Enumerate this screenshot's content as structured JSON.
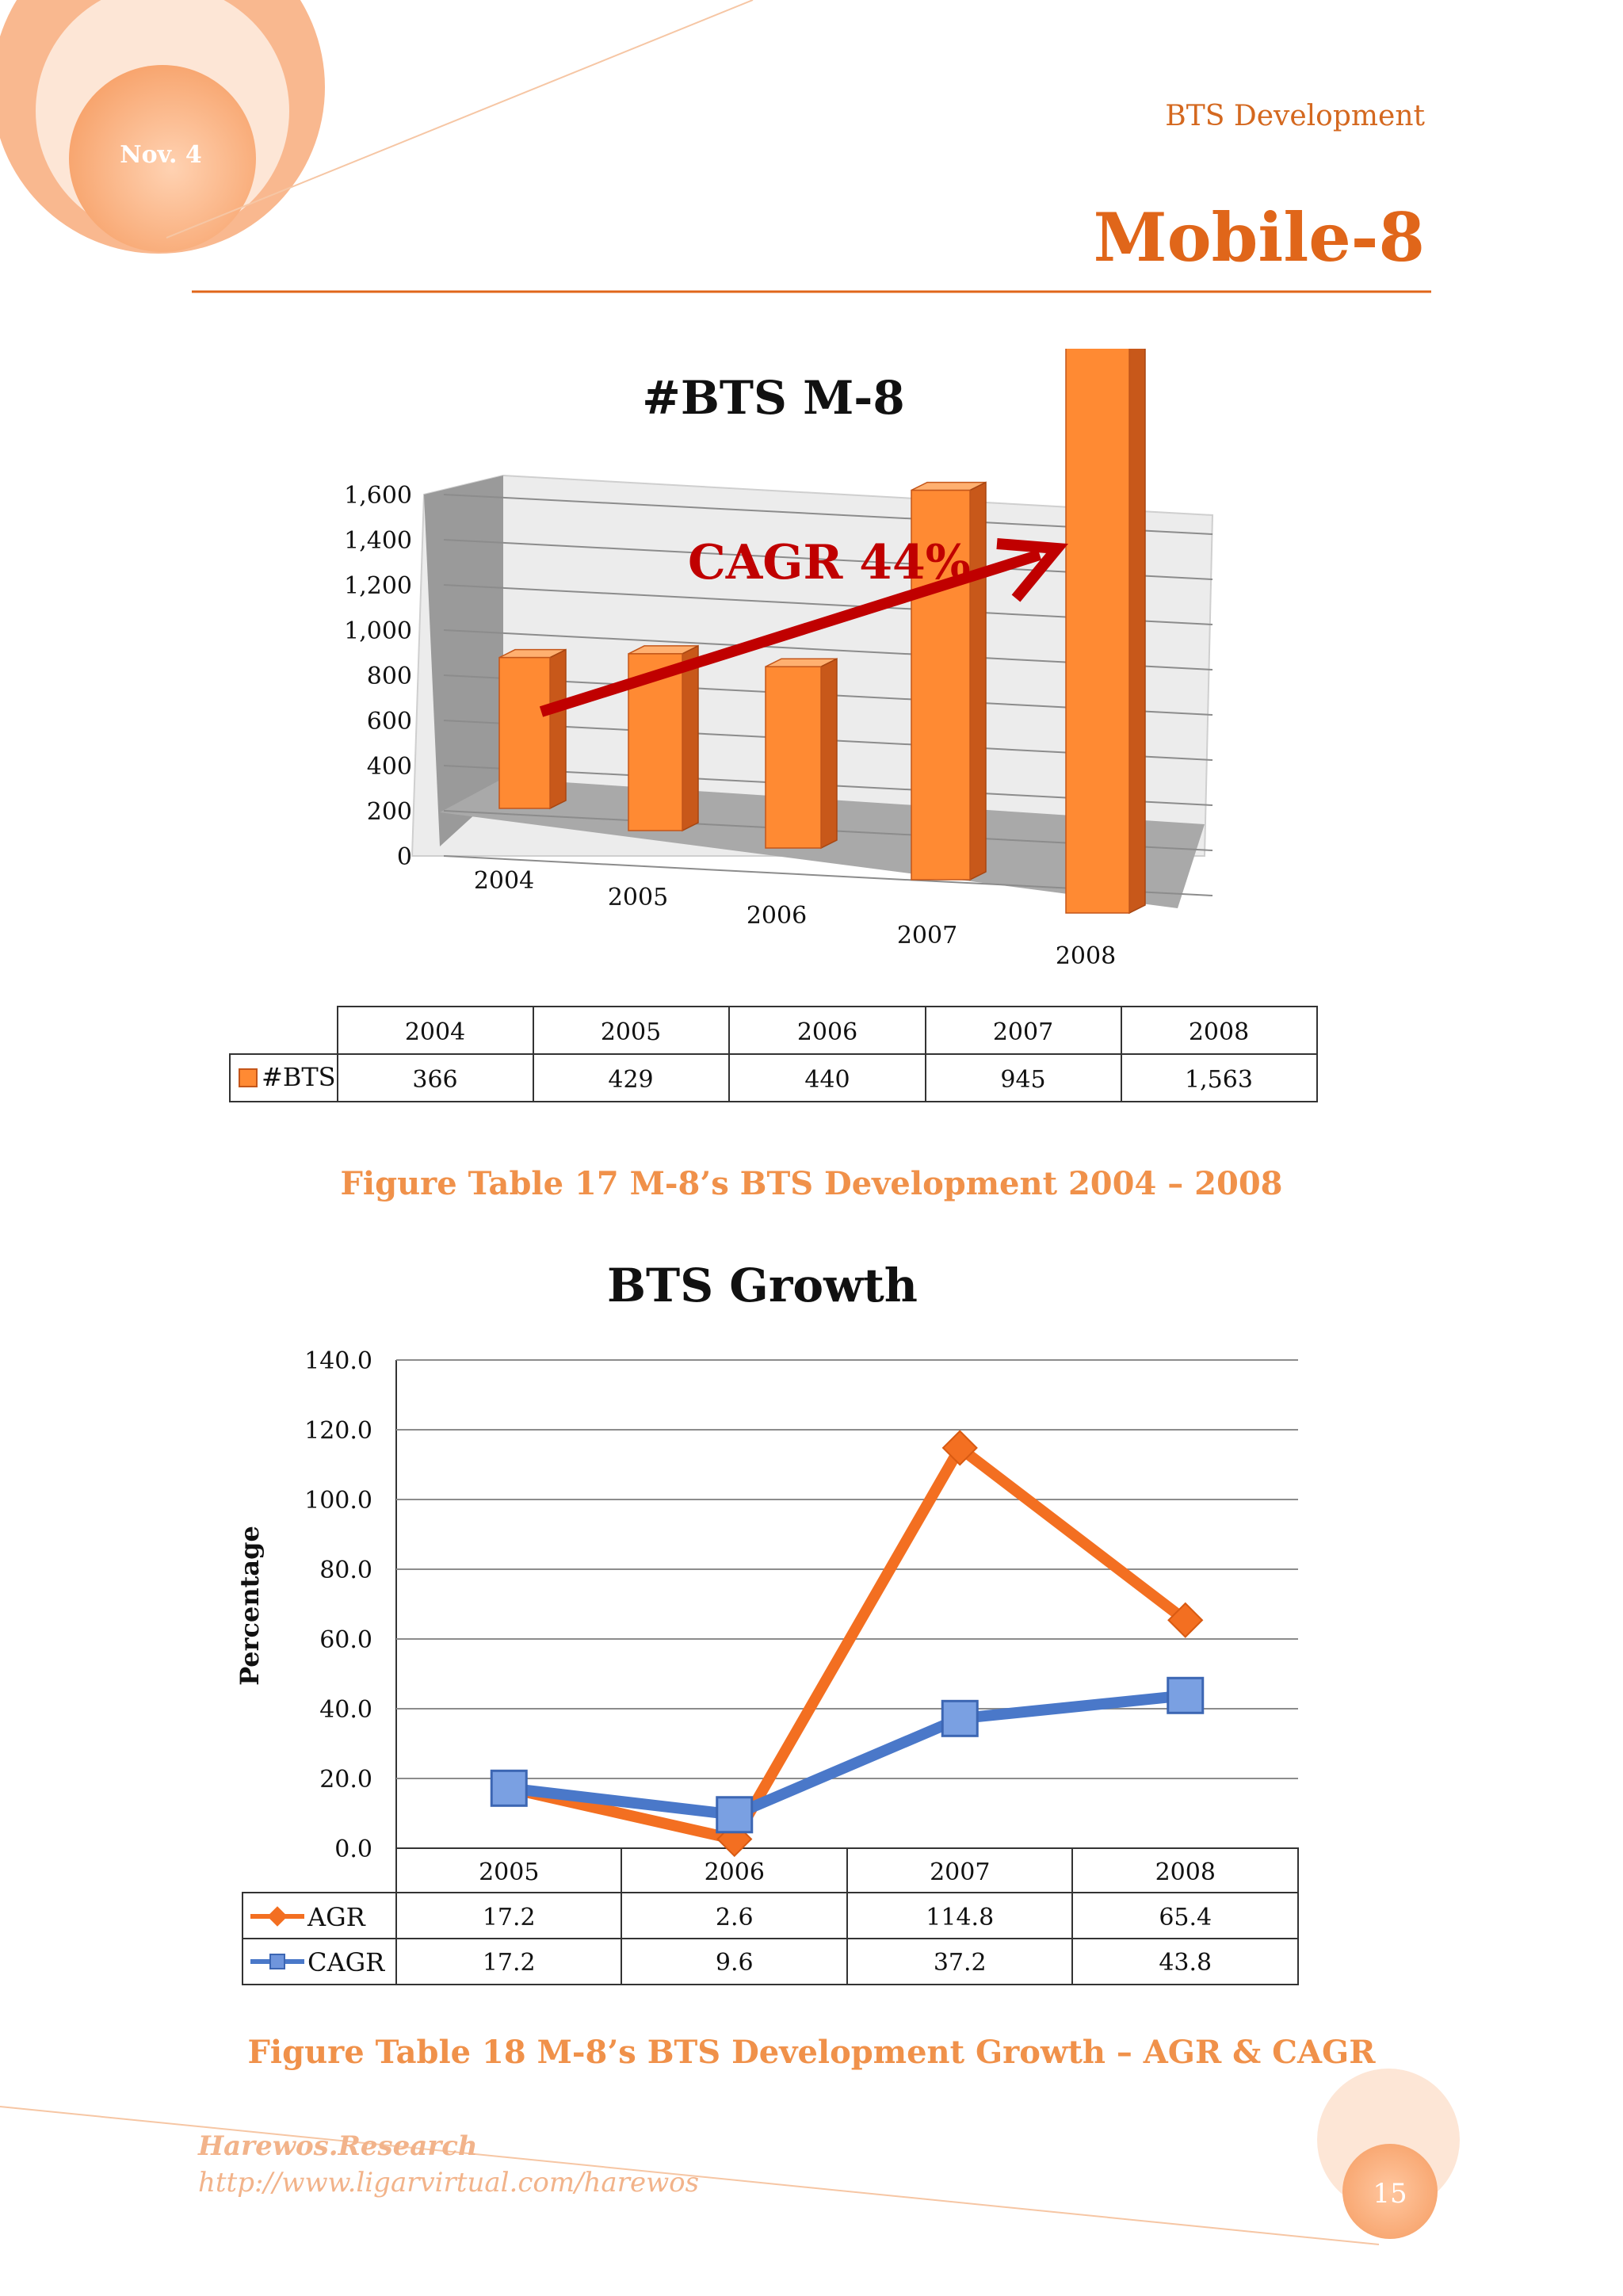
{
  "header": {
    "corner_label": "Nov. 4",
    "section": "BTS Development",
    "title": "Mobile-8"
  },
  "figure1": {
    "caption": "Figure Table 17 M-8’s BTS Development 2004 – 2008",
    "annotation": "CAGR 44%",
    "legend_label": "#BTS"
  },
  "figure2": {
    "caption": "Figure Table 18 M-8’s BTS Development Growth – AGR & CAGR"
  },
  "footer": {
    "name": "Harewos.Research",
    "url": "http://www.ligarvirtual.com/harewos",
    "page_number": "15"
  },
  "colors": {
    "accent_orange": "#e0661a",
    "bar_orange": "#ff8a33",
    "agr_line": "#f36f21",
    "cagr_line": "#4a78c9",
    "arrow_red": "#c00000"
  },
  "chart_data": [
    {
      "type": "bar",
      "style": "3d",
      "title": "#BTS M-8",
      "categories": [
        "2004",
        "2005",
        "2006",
        "2007",
        "2008"
      ],
      "series": [
        {
          "name": "#BTS",
          "values": [
            366,
            429,
            440,
            945,
            1563
          ],
          "labels": [
            "366",
            "429",
            "440",
            "945",
            "1,563"
          ]
        }
      ],
      "yticks": [
        "0",
        "200",
        "400",
        "600",
        "800",
        "1,000",
        "1,200",
        "1,400",
        "1,600"
      ],
      "ylim": [
        0,
        1600
      ],
      "grid": true,
      "data_table": true
    },
    {
      "type": "line",
      "title": "BTS Growth",
      "ylabel": "Percentage",
      "categories": [
        "2005",
        "2006",
        "2007",
        "2008"
      ],
      "series": [
        {
          "name": "AGR",
          "values": [
            17.2,
            2.6,
            114.8,
            65.4
          ],
          "labels": [
            "17.2",
            "2.6",
            "114.8",
            "65.4"
          ],
          "marker": "diamond",
          "color": "#f36f21"
        },
        {
          "name": "CAGR",
          "values": [
            17.2,
            9.6,
            37.2,
            43.8
          ],
          "labels": [
            "17.2",
            "9.6",
            "37.2",
            "43.8"
          ],
          "marker": "square",
          "color": "#4a78c9"
        }
      ],
      "yticks": [
        "0.0",
        "20.0",
        "40.0",
        "60.0",
        "80.0",
        "100.0",
        "120.0",
        "140.0"
      ],
      "ylim": [
        0,
        140
      ],
      "grid": true,
      "data_table": true
    }
  ]
}
